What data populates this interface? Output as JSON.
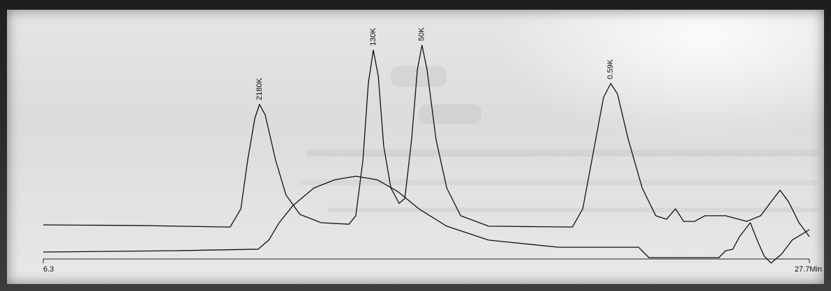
{
  "chart_data": {
    "type": "line",
    "xlim": [
      6.3,
      27.7
    ],
    "xticks": [
      6.3,
      {
        "value": 27.7,
        "label": "27.7Min"
      }
    ],
    "ylim": [
      -5,
      100
    ],
    "series": [
      {
        "color": "#111111",
        "x": [
          6.3,
          8.99,
          11.52,
          11.82,
          12.01,
          12.21,
          12.34,
          12.5,
          12.79,
          13.08,
          13.47,
          14.06,
          14.84,
          15.03,
          15.23,
          15.38,
          15.52,
          15.66,
          15.81,
          16.01,
          16.24,
          16.4,
          16.59,
          16.75,
          16.88,
          17.02,
          17.27,
          17.57,
          17.96,
          18.74,
          21.08,
          21.37,
          21.66,
          21.95,
          22.15,
          22.34,
          22.64,
          23.03,
          23.41,
          23.71,
          23.96,
          24.19,
          24.49,
          24.78,
          25.36,
          25.95,
          26.34,
          26.63,
          26.88,
          27.12,
          27.41,
          27.7
        ],
        "values": [
          15.7,
          15.4,
          14.7,
          23.1,
          45.5,
          64.7,
          71.2,
          66.3,
          45.5,
          29.5,
          20.5,
          16.7,
          16.0,
          19.9,
          45.5,
          80.8,
          96.2,
          84.0,
          51.9,
          32.7,
          25.6,
          27.9,
          55.1,
          87.2,
          98.4,
          87.2,
          55.1,
          32.7,
          19.9,
          15.1,
          14.7,
          23.1,
          48.7,
          74.4,
          80.8,
          76.0,
          55.1,
          32.7,
          19.9,
          18.3,
          23.1,
          17.3,
          17.3,
          19.9,
          19.9,
          17.3,
          19.9,
          26.3,
          31.7,
          26.3,
          16.7,
          10.3
        ]
      },
      {
        "color": "#111111",
        "x": [
          6.3,
          9.96,
          12.3,
          12.6,
          12.89,
          13.28,
          13.86,
          14.45,
          15.03,
          15.62,
          16.2,
          16.79,
          17.57,
          18.74,
          20.69,
          22.64,
          22.93,
          23.22,
          25.17,
          25.36,
          25.56,
          25.75,
          26.05,
          26.24,
          26.44,
          26.63,
          26.92,
          27.22,
          27.7
        ],
        "values": [
          3.2,
          3.8,
          4.5,
          8.7,
          16.7,
          24.7,
          32.7,
          36.5,
          38.1,
          36.5,
          31.1,
          23.1,
          15.1,
          8.7,
          5.4,
          5.4,
          5.4,
          0.6,
          0.6,
          3.8,
          4.5,
          10.3,
          16.7,
          8.7,
          1.3,
          -1.9,
          2.2,
          8.7,
          13.5
        ]
      }
    ],
    "annotations": [
      {
        "text": "2180K",
        "x": 12.34,
        "y": 71.2
      },
      {
        "text": "130K",
        "x": 15.52,
        "y": 96.2
      },
      {
        "text": "50K",
        "x": 16.88,
        "y": 98.4
      },
      {
        "text": "0.59K",
        "x": 22.15,
        "y": 80.8
      }
    ]
  }
}
